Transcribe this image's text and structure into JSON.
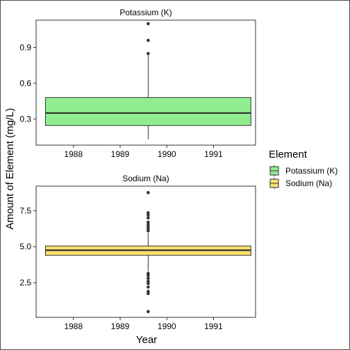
{
  "chart_data": {
    "type": "boxplot",
    "xlabel": "Year",
    "ylabel": "Amount of Element (mg/L)",
    "x_ticks": [
      "1988",
      "1989",
      "1990",
      "1991"
    ],
    "x_range": [
      1987.2,
      1991.9
    ],
    "box_x_span": [
      1987.4,
      1991.8
    ],
    "legend": {
      "title": "Element",
      "position": "right",
      "entries": [
        {
          "label": "Potassium (K)",
          "color": "#90EE90"
        },
        {
          "label": "Sodium (Na)",
          "color": "#F9DF6F"
        }
      ]
    },
    "panels": [
      {
        "title": "Potassium (K)",
        "color": "#90EE90",
        "ylim": [
          0.08,
          1.13
        ],
        "y_ticks": [
          0.3,
          0.6,
          0.9
        ],
        "y_tick_labels": [
          "0.3",
          "0.6",
          "0.9"
        ],
        "whisker_low": 0.13,
        "q1": 0.245,
        "median": 0.35,
        "q3": 0.48,
        "whisker_high": 0.845,
        "outliers": [
          0.85,
          0.96,
          1.1
        ]
      },
      {
        "title": "Sodium (Na)",
        "color": "#F9DF6F",
        "ylim": [
          0.1,
          9.2
        ],
        "y_ticks": [
          2.5,
          5.0,
          7.5
        ],
        "y_tick_labels": [
          "2.5",
          "5.0",
          "7.5"
        ],
        "whisker_low": 3.3,
        "q1": 4.4,
        "median": 4.75,
        "q3": 5.05,
        "whisker_high": 5.95,
        "outliers": [
          0.5,
          1.75,
          1.9,
          2.2,
          2.45,
          2.6,
          2.8,
          3.0,
          3.15,
          6.1,
          6.25,
          6.4,
          6.55,
          6.7,
          7.0,
          7.2,
          7.35,
          8.75
        ]
      }
    ]
  }
}
